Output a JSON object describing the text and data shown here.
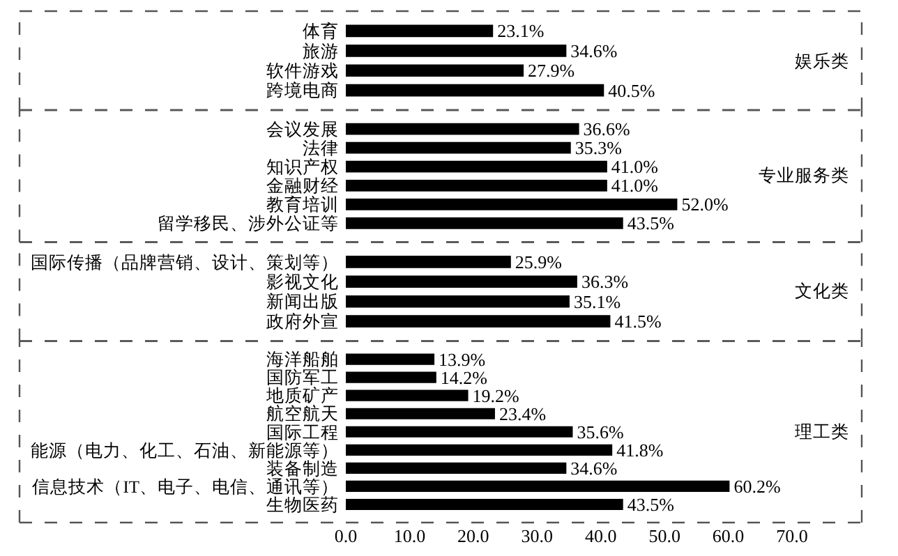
{
  "chart_data": [
    {
      "type": "bar",
      "orientation": "horizontal",
      "categories": [
        "体育",
        "旅游",
        "软件游戏",
        "跨境电商"
      ],
      "values": [
        23.1,
        34.6,
        27.9,
        40.5
      ],
      "value_labels": [
        "23.1%",
        "34.6%",
        "27.9%",
        "40.5%"
      ],
      "color": "#000000",
      "xlim": [
        0,
        70
      ],
      "annotations": [
        "娱乐类"
      ],
      "tick_labels": "y"
    },
    {
      "type": "bar",
      "orientation": "horizontal",
      "categories": [
        "会议发展",
        "法律",
        "知识产权",
        "金融财经",
        "教育培训",
        "留学移民、涉外公证等"
      ],
      "values": [
        36.6,
        35.3,
        41.0,
        41.0,
        52.0,
        43.5
      ],
      "value_labels": [
        "36.6%",
        "35.3%",
        "41.0%",
        "41.0%",
        "52.0%",
        "43.5%"
      ],
      "color": "#000000",
      "xlim": [
        0,
        70
      ],
      "annotations": [
        "专业服务类"
      ],
      "tick_labels": "y"
    },
    {
      "type": "bar",
      "orientation": "horizontal",
      "categories": [
        "国际传播（品牌营销、设计、策划等）",
        "影视文化",
        "新闻出版",
        "政府外宣"
      ],
      "values": [
        25.9,
        36.3,
        35.1,
        41.5
      ],
      "value_labels": [
        "25.9%",
        "36.3%",
        "35.1%",
        "41.5%"
      ],
      "color": "#000000",
      "xlim": [
        0,
        70
      ],
      "annotations": [
        "文化类"
      ],
      "tick_labels": "y"
    },
    {
      "type": "bar",
      "orientation": "horizontal",
      "categories": [
        "海洋船舶",
        "国防军工",
        "地质矿产",
        "航空航天",
        "国际工程",
        "能源（电力、化工、石油、新能源等）",
        "装备制造",
        "信息技术（IT、电子、电信、通讯等）",
        "生物医药"
      ],
      "values": [
        13.9,
        14.2,
        19.2,
        23.4,
        35.6,
        41.8,
        34.6,
        60.2,
        43.5
      ],
      "value_labels": [
        "13.9%",
        "14.2%",
        "19.2%",
        "23.4%",
        "35.6%",
        "41.8%",
        "34.6%",
        "60.2%",
        "43.5%"
      ],
      "color": "#000000",
      "xlim": [
        0,
        70
      ],
      "xticks": [
        {
          "value": 0,
          "label": "0.0"
        },
        {
          "value": 10,
          "label": "10.0"
        },
        {
          "value": 20,
          "label": "20.0"
        },
        {
          "value": 30,
          "label": "30.0"
        },
        {
          "value": 40,
          "label": "40.0"
        },
        {
          "value": 50,
          "label": "50.0"
        },
        {
          "value": 60,
          "label": "60.0"
        },
        {
          "value": 70,
          "label": "70.0"
        }
      ],
      "annotations": [
        "理工类"
      ]
    }
  ]
}
